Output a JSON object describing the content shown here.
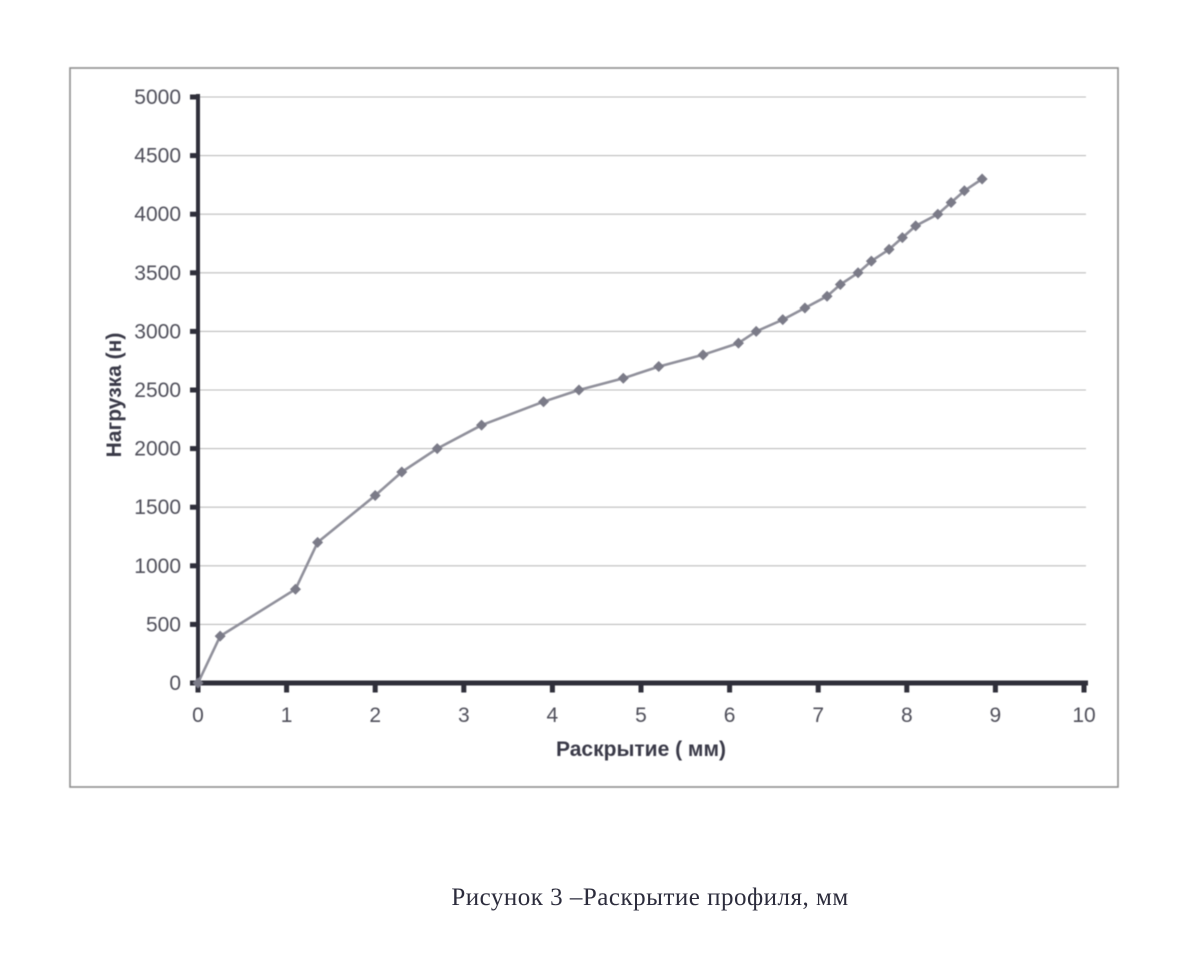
{
  "caption": {
    "text": "Рисунок 3 –Раскрытие профиля, мм"
  },
  "colors": {
    "axis": "#2f2f3a",
    "tick_label": "#4f4f5a",
    "axis_title": "#3a3a48",
    "gridline": "#bdbdbd",
    "series_line": "#90909b",
    "marker": "#7b7b88",
    "frame_border": "#8f8f8f",
    "caption_text": "#2c2c3c"
  },
  "chart_data": {
    "type": "line",
    "title": "",
    "xlabel": "Раскрытие ( мм)",
    "ylabel": "Нагрузка (н)",
    "xlim": [
      0,
      10
    ],
    "ylim": [
      0,
      5000
    ],
    "x_ticks": [
      0,
      1,
      2,
      3,
      4,
      5,
      6,
      7,
      8,
      9,
      10
    ],
    "y_ticks": [
      0,
      500,
      1000,
      1500,
      2000,
      2500,
      3000,
      3500,
      4000,
      4500,
      5000
    ],
    "grid": "horizontal",
    "legend": "none",
    "marker": "diamond",
    "series": [
      {
        "name": "Нагрузка (н)",
        "x": [
          0,
          0.25,
          1.1,
          1.35,
          2.0,
          2.3,
          2.7,
          3.2,
          3.9,
          4.3,
          4.8,
          5.2,
          5.7,
          6.1,
          6.3,
          6.6,
          6.85,
          7.1,
          7.25,
          7.45,
          7.6,
          7.8,
          7.95,
          8.1,
          8.35,
          8.5,
          8.65,
          8.85
        ],
        "y": [
          0,
          400,
          800,
          1200,
          1600,
          1800,
          2000,
          2200,
          2400,
          2500,
          2600,
          2700,
          2800,
          2900,
          3000,
          3100,
          3200,
          3300,
          3400,
          3500,
          3600,
          3700,
          3800,
          3900,
          4000,
          4100,
          4200,
          4300
        ]
      }
    ]
  }
}
